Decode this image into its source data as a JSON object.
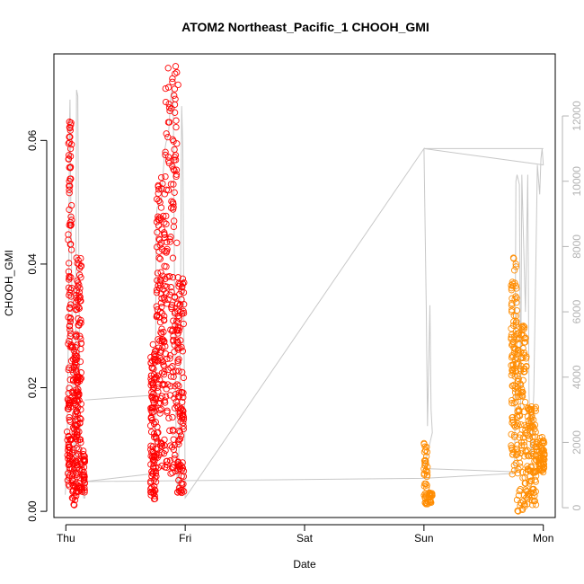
{
  "chart_data": {
    "type": "scatter",
    "title": "ATOM2 Northeast_Pacific_1 CHOOH_GMI",
    "xlabel": "Date",
    "ylabel": "CHOOH_GMI",
    "x_ticks": [
      "Thu",
      "Fri",
      "Sat",
      "Sun",
      "Mon"
    ],
    "x_range_days": [
      -0.1,
      4.1
    ],
    "y_ticks": [
      0.0,
      0.02,
      0.04,
      0.06
    ],
    "ylim": [
      -0.001,
      0.074
    ],
    "y2_ticks": [
      0,
      2000,
      4000,
      6000,
      8000,
      10000,
      12000
    ],
    "y2lim": [
      -300,
      13900
    ],
    "grid": false,
    "colors": {
      "flight_a": "#ff0000",
      "flight_b": "#ff8c00",
      "altitude": "#c8c8c8",
      "axis2": "#b3b3b3"
    },
    "series": [
      {
        "color": "flight_a",
        "marker": "open-circle",
        "segments": [
          {
            "t0": 0.01,
            "t1": 0.04,
            "lo": 0.004,
            "hi": 0.02,
            "n": 40
          },
          {
            "t0": 0.02,
            "t1": 0.05,
            "lo": 0.01,
            "hi": 0.063,
            "n": 80
          },
          {
            "t0": 0.05,
            "t1": 0.1,
            "lo": 0.001,
            "hi": 0.027,
            "n": 90
          },
          {
            "t0": 0.08,
            "t1": 0.13,
            "lo": 0.003,
            "hi": 0.041,
            "n": 110
          },
          {
            "t0": 0.13,
            "t1": 0.16,
            "lo": 0.003,
            "hi": 0.01,
            "n": 30
          },
          {
            "t0": 0.71,
            "t1": 0.76,
            "lo": 0.002,
            "hi": 0.027,
            "n": 110
          },
          {
            "t0": 0.76,
            "t1": 0.83,
            "lo": 0.007,
            "hi": 0.054,
            "n": 130
          },
          {
            "t0": 0.83,
            "t1": 0.93,
            "lo": 0.006,
            "hi": 0.072,
            "n": 150
          },
          {
            "t0": 0.93,
            "t1": 0.99,
            "lo": 0.003,
            "hi": 0.038,
            "n": 110
          }
        ],
        "points": [
          [
            0.03,
            0.063
          ],
          [
            0.035,
            0.062
          ],
          [
            0.09,
            0.041
          ],
          [
            0.11,
            0.04
          ],
          [
            0.8,
            0.054
          ],
          [
            0.81,
            0.053
          ],
          [
            0.92,
            0.072
          ],
          [
            0.93,
            0.071
          ],
          [
            0.94,
            0.069
          ],
          [
            0.73,
            0.027
          ],
          [
            0.015,
            0.005
          ],
          [
            0.07,
            0.001
          ],
          [
            0.74,
            0.002
          ],
          [
            0.97,
            0.003
          ],
          [
            0.99,
            0.037
          ]
        ]
      },
      {
        "color": "flight_b",
        "marker": "open-circle",
        "segments": [
          {
            "t0": 3.0,
            "t1": 3.03,
            "lo": 0.001,
            "hi": 0.011,
            "n": 40
          },
          {
            "t0": 3.03,
            "t1": 3.07,
            "lo": 0.001,
            "hi": 0.003,
            "n": 20
          },
          {
            "t0": 3.73,
            "t1": 3.78,
            "lo": 0.006,
            "hi": 0.041,
            "n": 100
          },
          {
            "t0": 3.78,
            "t1": 3.86,
            "lo": 0.0,
            "hi": 0.03,
            "n": 120
          },
          {
            "t0": 3.86,
            "t1": 3.94,
            "lo": 0.001,
            "hi": 0.017,
            "n": 90
          },
          {
            "t0": 3.94,
            "t1": 4.01,
            "lo": 0.006,
            "hi": 0.012,
            "n": 60
          }
        ],
        "points": [
          [
            3.75,
            0.041
          ],
          [
            3.77,
            0.04
          ],
          [
            3.79,
            0.0
          ],
          [
            3.8,
            0.027
          ],
          [
            3.99,
            0.012
          ],
          [
            3.0,
            0.011
          ],
          [
            3.05,
            0.003
          ],
          [
            3.74,
            0.006
          ],
          [
            3.9,
            0.016
          ]
        ]
      },
      {
        "color": "altitude",
        "axis": "right",
        "style": "line",
        "points": [
          [
            -0.005,
            400
          ],
          [
            0.0,
            700
          ],
          [
            0.01,
            1500
          ],
          [
            0.015,
            3500
          ],
          [
            0.02,
            5000
          ],
          [
            0.025,
            7000
          ],
          [
            0.03,
            11500
          ],
          [
            0.035,
            12500
          ],
          [
            0.04,
            10000
          ],
          [
            0.05,
            6500
          ],
          [
            0.06,
            3500
          ],
          [
            0.07,
            1200
          ],
          [
            0.08,
            400
          ],
          [
            0.085,
            8000
          ],
          [
            0.09,
            12800
          ],
          [
            0.1,
            12600
          ],
          [
            0.105,
            10000
          ],
          [
            0.11,
            7000
          ],
          [
            0.115,
            4500
          ],
          [
            0.12,
            2000
          ],
          [
            0.125,
            1200
          ],
          [
            0.13,
            800
          ],
          [
            0.14,
            500
          ],
          [
            0.15,
            300
          ],
          [
            0.16,
            300
          ],
          [
            0.155,
            600
          ],
          [
            0.16,
            800
          ],
          [
            0.75,
            1050
          ],
          [
            0.755,
            8000
          ],
          [
            0.76,
            9000
          ],
          [
            0.765,
            9200
          ],
          [
            0.8,
            9400
          ],
          [
            0.82,
            10500
          ],
          [
            0.83,
            11000
          ],
          [
            0.84,
            11200
          ],
          [
            0.85,
            11300
          ],
          [
            0.86,
            11400
          ],
          [
            0.88,
            12600
          ],
          [
            0.89,
            12800
          ],
          [
            0.9,
            12400
          ],
          [
            0.91,
            7000
          ],
          [
            0.92,
            3000
          ],
          [
            0.93,
            1200
          ],
          [
            0.935,
            500
          ],
          [
            0.95,
            2000
          ],
          [
            0.96,
            6000
          ],
          [
            0.97,
            12300
          ],
          [
            0.98,
            11000
          ],
          [
            0.99,
            5000
          ],
          [
            0.995,
            3300
          ],
          [
            1.0,
            300
          ],
          [
            3.0,
            11000
          ],
          [
            3.02,
            6000
          ],
          [
            3.03,
            2500
          ],
          [
            3.05,
            6200
          ],
          [
            3.06,
            3000
          ],
          [
            3.07,
            2300
          ],
          [
            3.0,
            1200
          ],
          [
            3.76,
            1100
          ],
          [
            3.77,
            10000
          ],
          [
            3.78,
            10200
          ],
          [
            3.8,
            9900
          ],
          [
            3.81,
            3000
          ],
          [
            3.82,
            10200
          ],
          [
            3.85,
            6000
          ],
          [
            3.87,
            10200
          ],
          [
            3.88,
            3500
          ],
          [
            3.9,
            1500
          ],
          [
            3.92,
            3500
          ],
          [
            3.94,
            8000
          ],
          [
            3.95,
            10500
          ],
          [
            3.97,
            9600
          ],
          [
            3.98,
            10700
          ],
          [
            3.99,
            11000
          ],
          [
            4.0,
            10500
          ],
          [
            3.0,
            11000
          ],
          [
            4.0,
            11000
          ],
          [
            3.5,
            11000
          ]
        ],
        "bridges": [
          [
            [
              0.16,
              3300
            ],
            [
              0.75,
              3450
            ]
          ],
          [
            [
              0.16,
              800
            ],
            [
              3.0,
              900
            ],
            [
              3.76,
              1050
            ]
          ]
        ]
      }
    ]
  }
}
